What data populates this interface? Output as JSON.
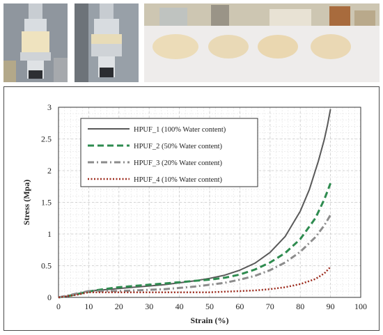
{
  "photos": [
    {
      "name": "compression-test-photo-1"
    },
    {
      "name": "compression-test-photo-2"
    },
    {
      "name": "foam-samples-photo"
    }
  ],
  "chart_data": {
    "type": "line",
    "xlabel": "Strain (%)",
    "ylabel": "Stress (Mpa)",
    "xlim": [
      0,
      100
    ],
    "ylim": [
      0,
      3
    ],
    "xticks": [
      0,
      10,
      20,
      30,
      40,
      50,
      60,
      70,
      80,
      90,
      100
    ],
    "yticks": [
      0,
      0.5,
      1,
      1.5,
      2,
      2.5,
      3
    ],
    "ytick_labels": [
      "0",
      "0.5",
      "1",
      "1.5",
      "2",
      "2.5",
      "3"
    ],
    "grid": true,
    "legend_position": "top-left",
    "series": [
      {
        "name": "HPUF_1 (100% Water content)",
        "color": "#595959",
        "style": "solid",
        "x": [
          0,
          3,
          6,
          9,
          10,
          12,
          15,
          20,
          25,
          30,
          35,
          40,
          45,
          50,
          55,
          60,
          65,
          70,
          75,
          80,
          83,
          86,
          88,
          89,
          90
        ],
        "y": [
          0,
          0.02,
          0.05,
          0.09,
          0.1,
          0.11,
          0.12,
          0.14,
          0.16,
          0.18,
          0.2,
          0.23,
          0.26,
          0.3,
          0.35,
          0.43,
          0.54,
          0.71,
          0.96,
          1.36,
          1.7,
          2.15,
          2.5,
          2.72,
          2.97
        ]
      },
      {
        "name": "HPUF_2 (50% Water content)",
        "color": "#2e8b4f",
        "style": "dashed",
        "x": [
          0,
          3,
          6,
          9,
          12,
          15,
          18,
          20,
          25,
          30,
          35,
          40,
          45,
          50,
          55,
          60,
          65,
          70,
          75,
          80,
          85,
          88,
          90
        ],
        "y": [
          0,
          0.02,
          0.05,
          0.08,
          0.11,
          0.13,
          0.15,
          0.16,
          0.18,
          0.2,
          0.22,
          0.24,
          0.26,
          0.28,
          0.31,
          0.36,
          0.44,
          0.55,
          0.7,
          0.92,
          1.25,
          1.55,
          1.8
        ]
      },
      {
        "name": "HPUF_3 (20% Water content)",
        "color": "#8c8c8c",
        "style": "dashdot",
        "x": [
          0,
          3,
          6,
          9,
          10,
          12,
          15,
          20,
          25,
          30,
          35,
          40,
          45,
          50,
          55,
          60,
          65,
          70,
          75,
          80,
          85,
          88,
          90
        ],
        "y": [
          0,
          0.03,
          0.06,
          0.09,
          0.1,
          0.1,
          0.1,
          0.1,
          0.11,
          0.12,
          0.13,
          0.15,
          0.17,
          0.2,
          0.23,
          0.28,
          0.34,
          0.43,
          0.55,
          0.72,
          0.95,
          1.14,
          1.3
        ]
      },
      {
        "name": "HPUF_4 (10% Water content)",
        "color": "#9c2b1d",
        "style": "dotted",
        "x": [
          0,
          3,
          6,
          9,
          10,
          12,
          15,
          20,
          25,
          30,
          35,
          40,
          45,
          50,
          55,
          60,
          65,
          70,
          75,
          80,
          85,
          88,
          90
        ],
        "y": [
          0,
          0.02,
          0.04,
          0.07,
          0.08,
          0.08,
          0.08,
          0.08,
          0.08,
          0.08,
          0.08,
          0.08,
          0.08,
          0.08,
          0.09,
          0.1,
          0.11,
          0.13,
          0.16,
          0.21,
          0.29,
          0.38,
          0.48
        ]
      }
    ]
  }
}
